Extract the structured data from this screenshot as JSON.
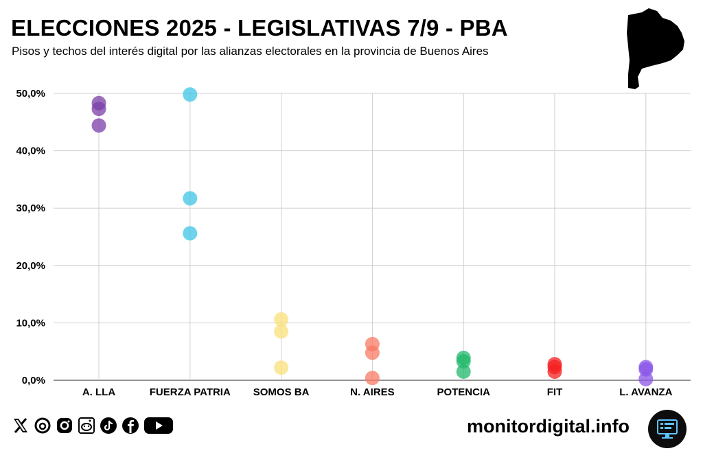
{
  "header": {
    "title": "ELECCIONES 2025 - LEGISLATIVAS 7/9 - PBA",
    "subtitle": "Pisos y techos del interés digital por las alianzas electorales en la provincia de Buenos Aires"
  },
  "footer": {
    "brand": "monitordigital.info",
    "social_icons": [
      "x-icon",
      "threads-icon",
      "instagram-icon",
      "reddit-icon",
      "tiktok-icon",
      "facebook-icon",
      "youtube-icon"
    ]
  },
  "chart_data": {
    "type": "scatter",
    "title": "ELECCIONES 2025 - LEGISLATIVAS 7/9 - PBA",
    "subtitle": "Pisos y techos del interés digital por las alianzas electorales en la provincia de Buenos Aires",
    "xlabel": "",
    "ylabel": "",
    "ylim": [
      0,
      50
    ],
    "yticks": [
      "0,0%",
      "10,0%",
      "20,0%",
      "30,0%",
      "40,0%",
      "50,0%"
    ],
    "grid": true,
    "categories": [
      "A. LLA",
      "FUERZA PATRIA",
      "SOMOS BA",
      "N. AIRES",
      "POTENCIA",
      "FIT",
      "L. AVANZA"
    ],
    "series": [
      {
        "category": "A. LLA",
        "color": "#7b3fa8",
        "values": [
          48.3,
          47.3,
          44.4
        ]
      },
      {
        "category": "FUERZA PATRIA",
        "color": "#3ec6e6",
        "values": [
          49.8,
          31.7,
          25.6
        ]
      },
      {
        "category": "SOMOS BA",
        "color": "#f9e07a",
        "values": [
          10.6,
          8.5,
          2.2
        ]
      },
      {
        "category": "N. AIRES",
        "color": "#f87a64",
        "values": [
          6.3,
          4.8,
          0.4
        ]
      },
      {
        "category": "POTENCIA",
        "color": "#21b86a",
        "values": [
          3.9,
          3.3,
          1.5
        ]
      },
      {
        "category": "FIT",
        "color": "#f42020",
        "values": [
          2.8,
          2.3,
          1.5
        ]
      },
      {
        "category": "L. AVANZA",
        "color": "#8a55e8",
        "values": [
          2.3,
          1.9,
          0.2
        ]
      }
    ]
  }
}
